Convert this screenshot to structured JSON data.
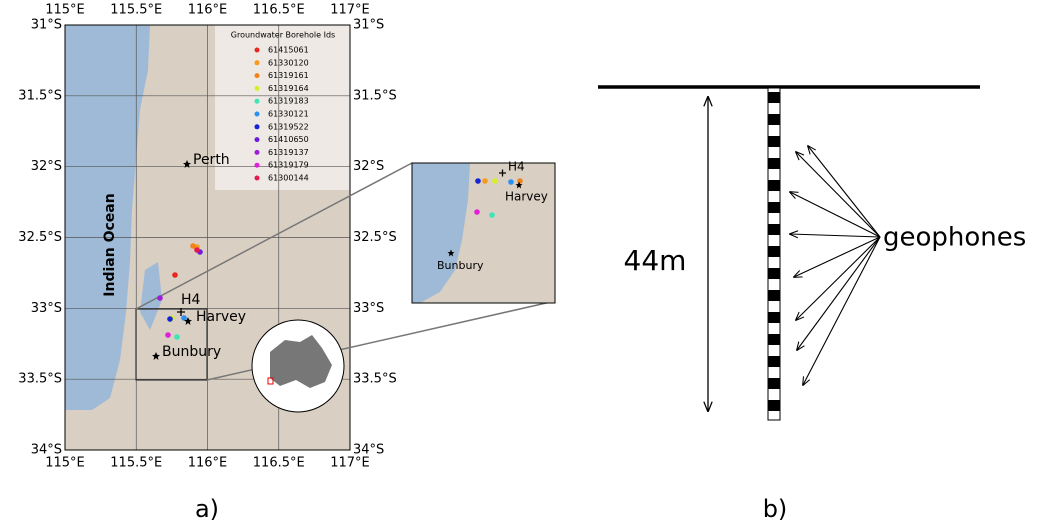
{
  "panel_a": {
    "label": "a)",
    "lon_labels": [
      "115°E",
      "115.5°E",
      "116°E",
      "116.5°E",
      "117°E"
    ],
    "lat_labels": [
      "31°S",
      "31.5°S",
      "32°S",
      "32.5°S",
      "33°S",
      "33.5°S",
      "34°S"
    ],
    "legend": {
      "title": "Groundwater Borehole Ids",
      "entries": [
        {
          "id": "61415061",
          "color": "#e8271e"
        },
        {
          "id": "61330120",
          "color": "#f59a1b"
        },
        {
          "id": "61319161",
          "color": "#f0821a"
        },
        {
          "id": "61319164",
          "color": "#d7ef2a"
        },
        {
          "id": "61319183",
          "color": "#3ee6b4"
        },
        {
          "id": "61330121",
          "color": "#2b8ff0"
        },
        {
          "id": "61319522",
          "color": "#1424d6"
        },
        {
          "id": "61410650",
          "color": "#6a1fe0"
        },
        {
          "id": "61319137",
          "color": "#9b1fd8"
        },
        {
          "id": "61319179",
          "color": "#e41fd8"
        },
        {
          "id": "61300144",
          "color": "#e3194f"
        }
      ]
    },
    "ocean": "Indian Ocean",
    "places": {
      "perth": "Perth",
      "h4": "H4",
      "harvey": "Harvey",
      "bunbury": "Bunbury"
    },
    "inset": {
      "h4": "H4",
      "harvey": "Harvey",
      "bunbury": "Bunbury"
    }
  },
  "panel_b": {
    "label": "b)",
    "depth": "44m",
    "sensors": "geophones"
  }
}
